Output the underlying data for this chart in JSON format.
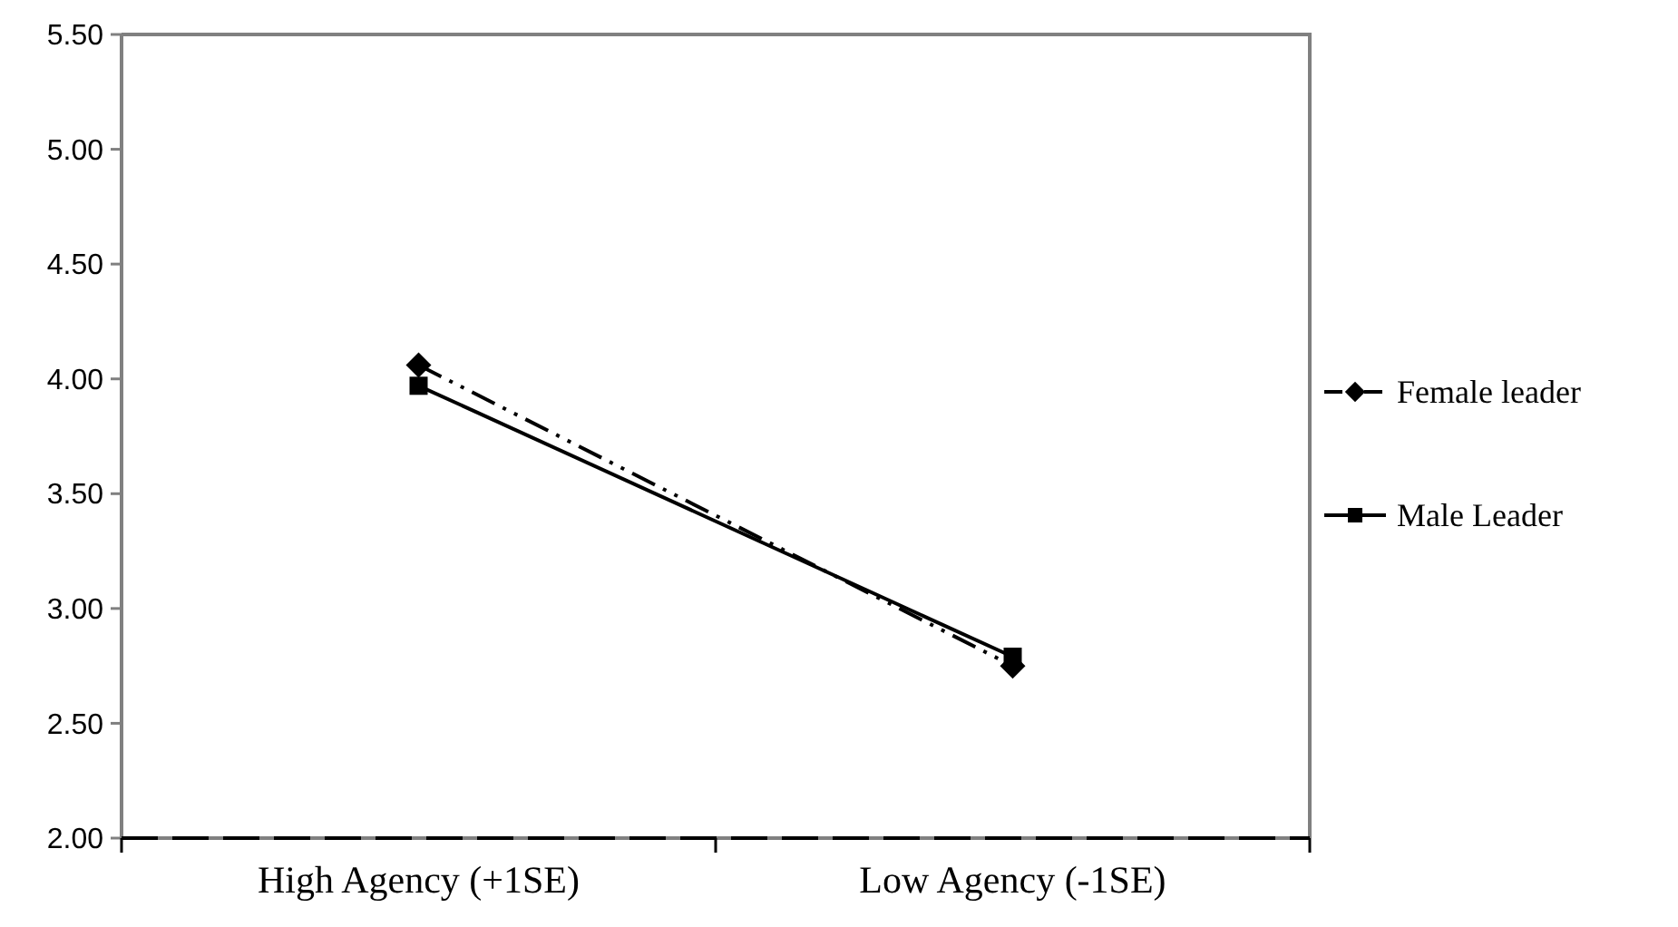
{
  "chart_data": {
    "type": "line",
    "categories": [
      "High Agency (+1SE)",
      "Low Agency (-1SE)"
    ],
    "series": [
      {
        "name": "Female leader",
        "color": "#000000",
        "values": [
          4.06,
          2.75
        ],
        "marker": "diamond",
        "line_style": "dashed"
      },
      {
        "name": "Male Leader",
        "color": "#000000",
        "values": [
          3.97,
          2.79
        ],
        "marker": "square",
        "line_style": "solid"
      }
    ],
    "ylim": [
      2,
      5.5
    ],
    "yticks": [
      {
        "value": 2,
        "label": "2.00"
      },
      {
        "value": 2.5,
        "label": "2.50"
      },
      {
        "value": 3,
        "label": "3.00"
      },
      {
        "value": 3.5,
        "label": "3.50"
      },
      {
        "value": 4,
        "label": "4.00"
      },
      {
        "value": 4.5,
        "label": "4.50"
      },
      {
        "value": 5,
        "label": "5.00"
      },
      {
        "value": 5.5,
        "label": "5.50"
      }
    ],
    "grid": false,
    "legend": "right"
  }
}
